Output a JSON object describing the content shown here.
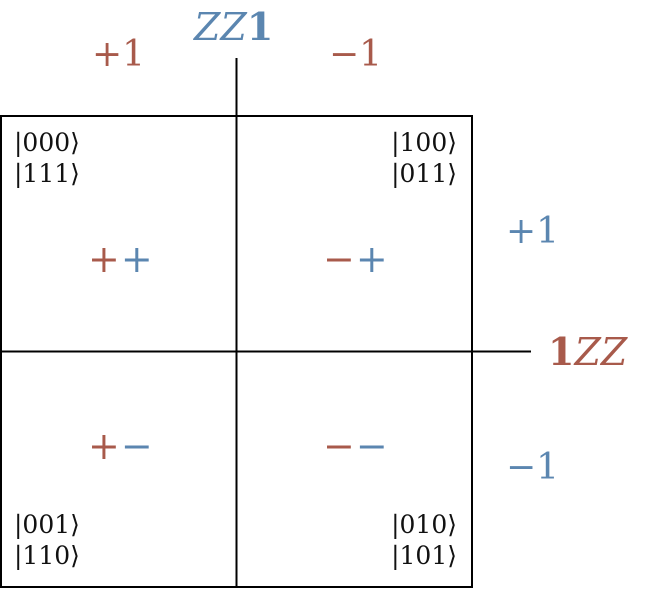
{
  "colors": {
    "row_axis": "#a85a4b",
    "column_axis": "#5b86b0",
    "lines": "#000000"
  },
  "top_axis": {
    "label_prefix": "ZZ",
    "label_suffix": "1",
    "plus_label": "+1",
    "minus_label": "−1"
  },
  "right_axis": {
    "label_prefix": "1",
    "label_suffix": "ZZ",
    "plus_label": "+1",
    "minus_label": "−1"
  },
  "quadrants": {
    "top_left": {
      "kets": [
        "|000⟩",
        "|111⟩"
      ],
      "sign_first": "+",
      "sign_second": "+"
    },
    "top_right": {
      "kets": [
        "|100⟩",
        "|011⟩"
      ],
      "sign_first": "−",
      "sign_second": "+"
    },
    "bottom_left": {
      "kets": [
        "|001⟩",
        "|110⟩"
      ],
      "sign_first": "+",
      "sign_second": "−"
    },
    "bottom_right": {
      "kets": [
        "|010⟩",
        "|101⟩"
      ],
      "sign_first": "−",
      "sign_second": "−"
    }
  }
}
